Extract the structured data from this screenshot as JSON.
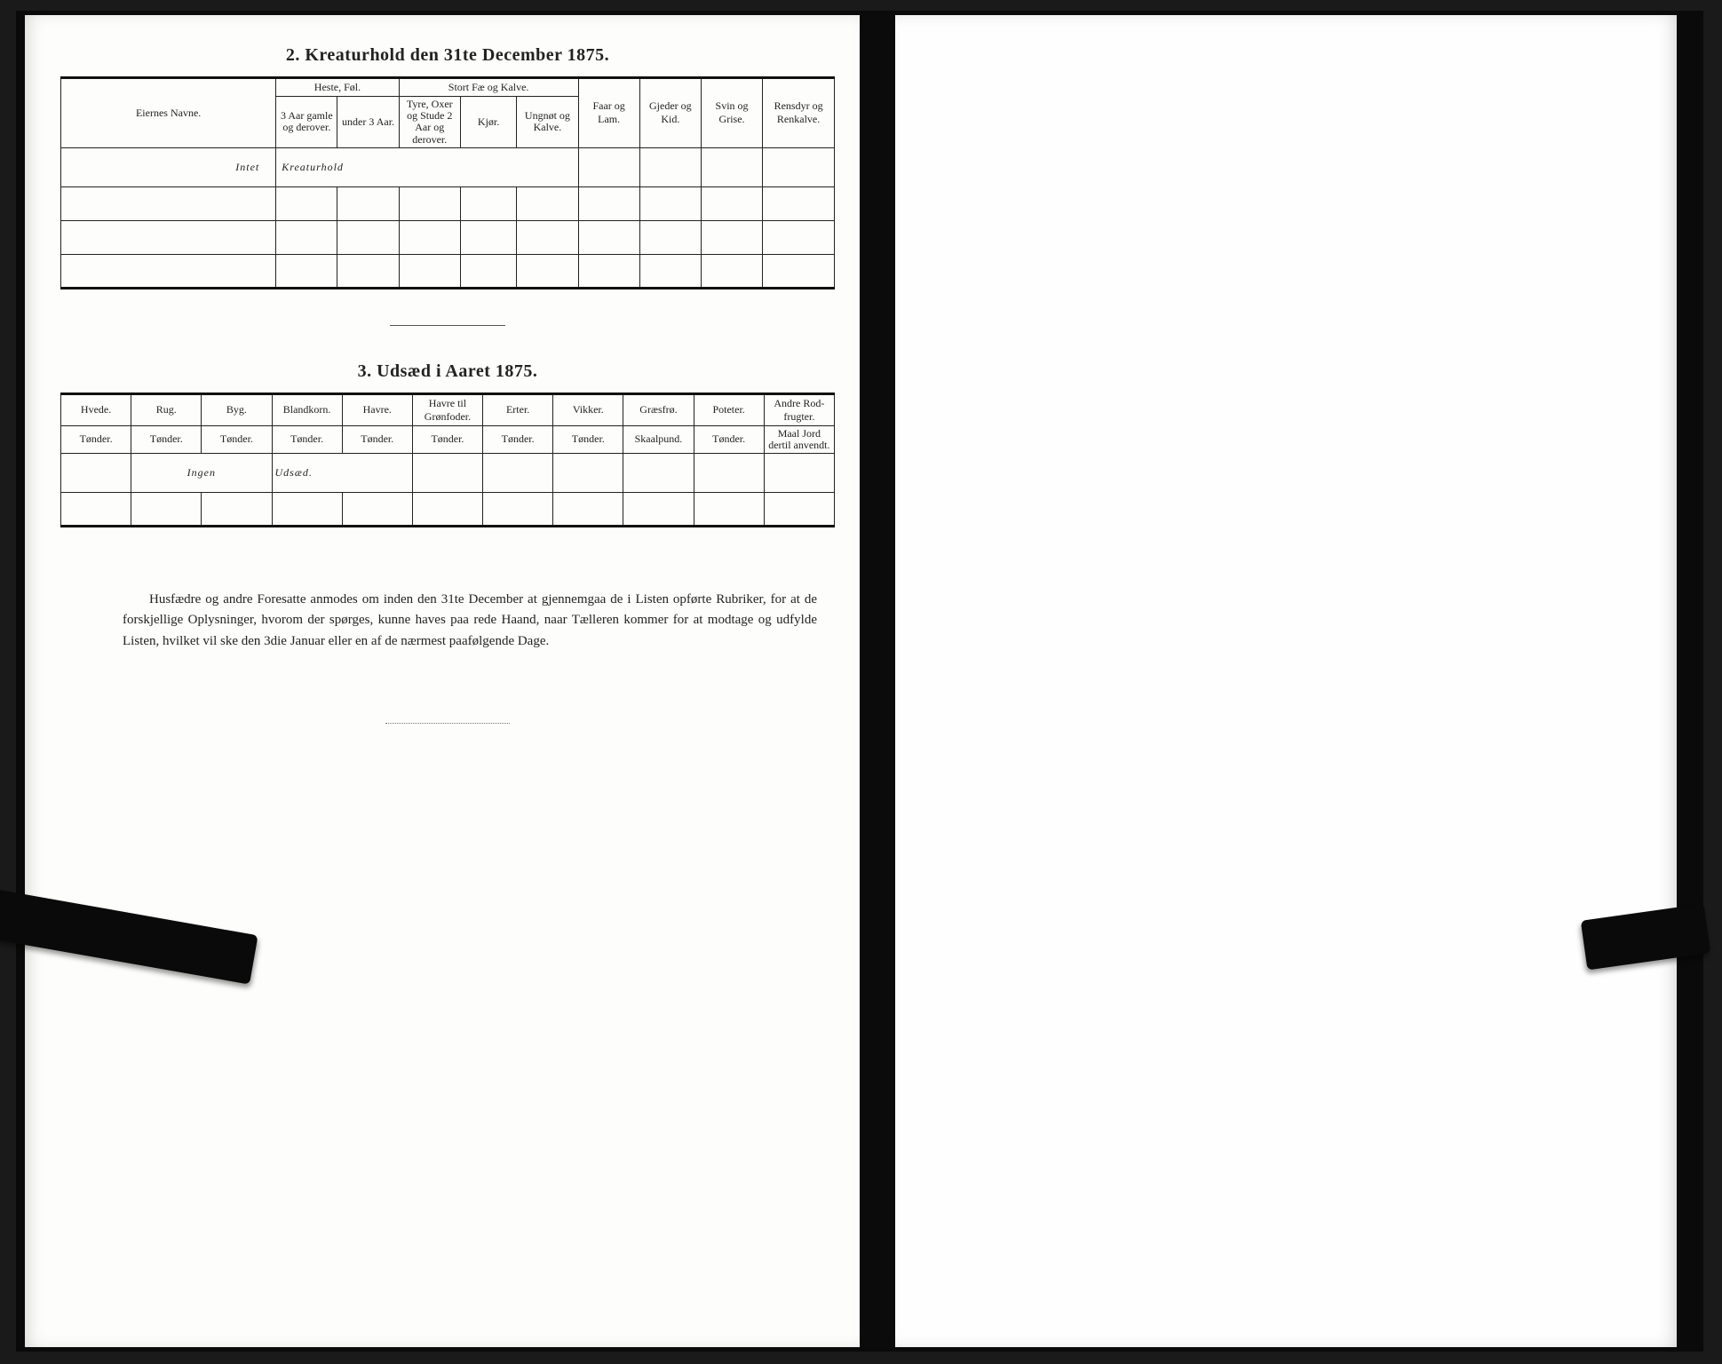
{
  "section2": {
    "title": "2.   Kreaturhold den 31te December 1875.",
    "col_owner": "Eiernes Navne.",
    "group_heste": "Heste, Føl.",
    "sub_heste_1": "3 Aar gamle og derover.",
    "sub_heste_2": "under 3 Aar.",
    "group_fae": "Stort Fæ og Kalve.",
    "sub_fae_1": "Tyre, Oxer og Stude 2 Aar og derover.",
    "sub_fae_2": "Kjør.",
    "sub_fae_3": "Ungnøt og Kalve.",
    "col_faar": "Faar og Lam.",
    "col_gjeder": "Gjeder og Kid.",
    "col_svin": "Svin og Grise.",
    "col_rensdyr": "Rensdyr og Renkalve.",
    "hand1": "Intet",
    "hand2": "Kreaturhold"
  },
  "section3": {
    "title": "3.   Udsæd i Aaret 1875.",
    "cols": [
      {
        "h": "Hvede.",
        "s": "Tønder."
      },
      {
        "h": "Rug.",
        "s": "Tønder."
      },
      {
        "h": "Byg.",
        "s": "Tønder."
      },
      {
        "h": "Blandkorn.",
        "s": "Tønder."
      },
      {
        "h": "Havre.",
        "s": "Tønder."
      },
      {
        "h": "Havre til Grønfoder.",
        "s": "Tønder."
      },
      {
        "h": "Erter.",
        "s": "Tønder."
      },
      {
        "h": "Vikker.",
        "s": "Tønder."
      },
      {
        "h": "Græsfrø.",
        "s": "Skaalpund."
      },
      {
        "h": "Poteter.",
        "s": "Tønder."
      },
      {
        "h": "Andre Rod-frugter.",
        "s": "Maal Jord dertil anvendt."
      }
    ],
    "hand1": "Ingen",
    "hand2": "Udsæd."
  },
  "footer": "Husfædre og andre Foresatte anmodes om inden den 31te December at gjennemgaa de i Listen opførte Rubriker, for at de forskjellige Oplysninger, hvorom der spørges, kunne haves paa rede Haand, naar Tælleren kommer for at modtage og udfylde Listen, hvilket vil ske den 3die Januar eller en af de nærmest paafølgende Dage."
}
